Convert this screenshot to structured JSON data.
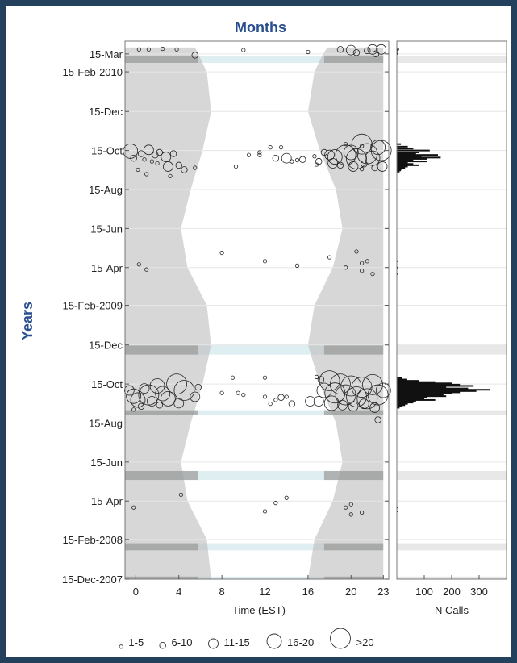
{
  "chart_data": {
    "type": "scatter",
    "top_title": "Months",
    "side_title": "Years",
    "xlabel": "Time (EST)",
    "hist_xlabel": "N Calls",
    "x_ticks": [
      "0",
      "4",
      "8",
      "12",
      "16",
      "20",
      "23"
    ],
    "x_tick_values": [
      0,
      4,
      8,
      12,
      16,
      20,
      23
    ],
    "hist_ticks": [
      "100",
      "200",
      "300"
    ],
    "hist_tick_values": [
      100,
      200,
      300
    ],
    "y_ticks": [
      "15-Mar",
      "15-Feb-2010",
      "15-Dec",
      "15-Oct",
      "15-Aug",
      "15-Jun",
      "15-Apr",
      "15-Feb-2009",
      "15-Dec",
      "15-Oct",
      "15-Aug",
      "15-Jun",
      "15-Apr",
      "15-Feb-2008",
      "15-Dec-2007"
    ],
    "y_tick_dates": [
      "2010-03-15",
      "2010-02-15",
      "2009-12-15",
      "2009-10-15",
      "2009-08-15",
      "2009-06-15",
      "2009-04-15",
      "2009-02-15",
      "2008-12-15",
      "2008-10-15",
      "2008-08-15",
      "2008-06-15",
      "2008-04-15",
      "2008-02-15",
      "2007-12-15"
    ],
    "legend": [
      {
        "label": "1-5",
        "size_class": 1
      },
      {
        "label": "6-10",
        "size_class": 2
      },
      {
        "label": "11-15",
        "size_class": 3
      },
      {
        "label": "16-20",
        "size_class": 4
      },
      {
        "label": ">20",
        "size_class": 5
      }
    ],
    "night_shading": [
      {
        "date": "2007-12-15",
        "sunrise": 7.0,
        "sunset": 16.0
      },
      {
        "date": "2008-02-15",
        "sunrise": 6.6,
        "sunset": 16.6
      },
      {
        "date": "2008-04-15",
        "sunrise": 4.8,
        "sunset": 18.3
      },
      {
        "date": "2008-06-15",
        "sunrise": 4.2,
        "sunset": 19.2
      },
      {
        "date": "2008-08-15",
        "sunrise": 5.1,
        "sunset": 18.6
      },
      {
        "date": "2008-10-15",
        "sunrise": 6.2,
        "sunset": 17.1
      },
      {
        "date": "2008-12-15",
        "sunrise": 7.0,
        "sunset": 16.0
      },
      {
        "date": "2009-02-15",
        "sunrise": 6.6,
        "sunset": 16.6
      },
      {
        "date": "2009-04-15",
        "sunrise": 4.8,
        "sunset": 18.3
      },
      {
        "date": "2009-06-15",
        "sunrise": 4.2,
        "sunset": 19.2
      },
      {
        "date": "2009-08-15",
        "sunrise": 5.1,
        "sunset": 18.6
      },
      {
        "date": "2009-10-15",
        "sunrise": 6.2,
        "sunset": 17.1
      },
      {
        "date": "2009-12-15",
        "sunrise": 7.0,
        "sunset": 16.0
      },
      {
        "date": "2010-02-15",
        "sunrise": 6.6,
        "sunset": 16.6
      },
      {
        "date": "2010-03-15",
        "sunrise": 5.8,
        "sunset": 17.4
      },
      {
        "date": "2010-03-25",
        "sunrise": 5.5,
        "sunset": 17.8
      }
    ],
    "no_effort_periods": [
      {
        "start": "2007-12-15",
        "end": "2007-12-19"
      },
      {
        "start": "2008-01-29",
        "end": "2008-02-09"
      },
      {
        "start": "2008-05-18",
        "end": "2008-06-01"
      },
      {
        "start": "2008-08-28",
        "end": "2008-09-04"
      },
      {
        "start": "2008-11-30",
        "end": "2008-12-15"
      },
      {
        "start": "2010-03-01",
        "end": "2010-03-11"
      }
    ],
    "detections": [
      {
        "date": "2010-03-22",
        "hour": 0.3,
        "size": 1
      },
      {
        "date": "2010-03-22",
        "hour": 1.2,
        "size": 1
      },
      {
        "date": "2010-03-23",
        "hour": 2.5,
        "size": 1
      },
      {
        "date": "2010-03-22",
        "hour": 3.8,
        "size": 1
      },
      {
        "date": "2010-03-13",
        "hour": 5.5,
        "size": 2
      },
      {
        "date": "2010-03-21",
        "hour": 10.0,
        "size": 1
      },
      {
        "date": "2010-03-18",
        "hour": 16.0,
        "size": 1
      },
      {
        "date": "2010-03-22",
        "hour": 19.0,
        "size": 2
      },
      {
        "date": "2010-03-21",
        "hour": 20.0,
        "size": 3
      },
      {
        "date": "2010-03-17",
        "hour": 20.5,
        "size": 2
      },
      {
        "date": "2010-03-20",
        "hour": 21.5,
        "size": 2
      },
      {
        "date": "2010-03-22",
        "hour": 22.0,
        "size": 3
      },
      {
        "date": "2010-03-22",
        "hour": 22.8,
        "size": 3
      },
      {
        "date": "2010-03-15",
        "hour": 22.3,
        "size": 2
      },
      {
        "date": "2009-10-20",
        "hour": 12.5,
        "size": 1
      },
      {
        "date": "2009-10-20",
        "hour": 13.5,
        "size": 1
      },
      {
        "date": "2009-10-25",
        "hour": 19.5,
        "size": 1
      },
      {
        "date": "2009-10-22",
        "hour": 21.0,
        "size": 1
      },
      {
        "date": "2009-10-14",
        "hour": -0.5,
        "size": 4
      },
      {
        "date": "2009-10-03",
        "hour": -0.2,
        "size": 2
      },
      {
        "date": "2009-10-10",
        "hour": 0.5,
        "size": 2
      },
      {
        "date": "2009-10-01",
        "hour": 0.8,
        "size": 1
      },
      {
        "date": "2009-10-16",
        "hour": 1.2,
        "size": 3
      },
      {
        "date": "2009-10-08",
        "hour": 1.8,
        "size": 2
      },
      {
        "date": "2009-09-28",
        "hour": 1.5,
        "size": 1
      },
      {
        "date": "2009-10-12",
        "hour": 2.2,
        "size": 2
      },
      {
        "date": "2009-10-05",
        "hour": 2.8,
        "size": 3
      },
      {
        "date": "2009-09-25",
        "hour": 2.0,
        "size": 1
      },
      {
        "date": "2009-10-10",
        "hour": 3.5,
        "size": 2
      },
      {
        "date": "2009-09-20",
        "hour": 3.0,
        "size": 3
      },
      {
        "date": "2009-09-22",
        "hour": 4.0,
        "size": 2
      },
      {
        "date": "2009-09-15",
        "hour": 4.5,
        "size": 2
      },
      {
        "date": "2009-09-18",
        "hour": 5.5,
        "size": 1
      },
      {
        "date": "2009-09-05",
        "hour": 3.2,
        "size": 1
      },
      {
        "date": "2009-09-08",
        "hour": 1.0,
        "size": 1
      },
      {
        "date": "2009-09-15",
        "hour": 0.2,
        "size": 1
      },
      {
        "date": "2009-10-08",
        "hour": 10.5,
        "size": 1
      },
      {
        "date": "2009-10-12",
        "hour": 11.5,
        "size": 1
      },
      {
        "date": "2009-10-08",
        "hour": 11.5,
        "size": 1
      },
      {
        "date": "2009-09-20",
        "hour": 9.3,
        "size": 1
      },
      {
        "date": "2009-10-03",
        "hour": 13.0,
        "size": 2
      },
      {
        "date": "2009-10-03",
        "hour": 14.0,
        "size": 3
      },
      {
        "date": "2009-09-30",
        "hour": 15.0,
        "size": 1
      },
      {
        "date": "2009-10-01",
        "hour": 15.5,
        "size": 2
      },
      {
        "date": "2009-09-28",
        "hour": 14.5,
        "size": 1
      },
      {
        "date": "2009-10-25",
        "hour": 21.0,
        "size": 5
      },
      {
        "date": "2009-10-20",
        "hour": 22.5,
        "size": 4
      },
      {
        "date": "2009-10-12",
        "hour": 17.5,
        "size": 2
      },
      {
        "date": "2009-10-08",
        "hour": 18.0,
        "size": 3
      },
      {
        "date": "2009-10-05",
        "hour": 18.5,
        "size": 4
      },
      {
        "date": "2009-10-08",
        "hour": 19.5,
        "size": 5
      },
      {
        "date": "2009-10-12",
        "hour": 20.0,
        "size": 4
      },
      {
        "date": "2009-10-02",
        "hour": 20.5,
        "size": 5
      },
      {
        "date": "2009-10-10",
        "hour": 21.5,
        "size": 5
      },
      {
        "date": "2009-10-03",
        "hour": 22.0,
        "size": 4
      },
      {
        "date": "2009-10-15",
        "hour": 22.8,
        "size": 5
      },
      {
        "date": "2009-09-28",
        "hour": 17.0,
        "size": 2
      },
      {
        "date": "2009-09-25",
        "hour": 18.3,
        "size": 3
      },
      {
        "date": "2009-09-22",
        "hour": 19.0,
        "size": 2
      },
      {
        "date": "2009-09-20",
        "hour": 20.2,
        "size": 3
      },
      {
        "date": "2009-09-24",
        "hour": 21.2,
        "size": 2
      },
      {
        "date": "2009-09-18",
        "hour": 22.2,
        "size": 2
      },
      {
        "date": "2009-09-20",
        "hour": 22.9,
        "size": 3
      },
      {
        "date": "2009-09-23",
        "hour": 16.8,
        "size": 1
      },
      {
        "date": "2009-10-06",
        "hour": 16.6,
        "size": 1
      },
      {
        "date": "2009-09-16",
        "hour": 21.0,
        "size": 1
      },
      {
        "date": "2009-05-01",
        "hour": 18.0,
        "size": 1
      },
      {
        "date": "2009-05-10",
        "hour": 20.5,
        "size": 1
      },
      {
        "date": "2009-04-25",
        "hour": 21.5,
        "size": 1
      },
      {
        "date": "2009-04-15",
        "hour": 19.5,
        "size": 1
      },
      {
        "date": "2009-04-10",
        "hour": 21.0,
        "size": 1
      },
      {
        "date": "2009-04-05",
        "hour": 22.0,
        "size": 1
      },
      {
        "date": "2009-04-22",
        "hour": 21.0,
        "size": 1
      },
      {
        "date": "2009-05-08",
        "hour": 8.0,
        "size": 1
      },
      {
        "date": "2009-04-20",
        "hour": 0.3,
        "size": 1
      },
      {
        "date": "2009-04-12",
        "hour": 1.0,
        "size": 1
      },
      {
        "date": "2009-04-25",
        "hour": 12.0,
        "size": 1
      },
      {
        "date": "2009-04-18",
        "hour": 15.0,
        "size": 1
      },
      {
        "date": "2008-10-25",
        "hour": 9.0,
        "size": 1
      },
      {
        "date": "2008-10-25",
        "hour": 12.0,
        "size": 1
      },
      {
        "date": "2008-10-01",
        "hour": 8.0,
        "size": 1
      },
      {
        "date": "2008-10-01",
        "hour": 9.5,
        "size": 1
      },
      {
        "date": "2008-09-28",
        "hour": 10.0,
        "size": 1
      },
      {
        "date": "2008-09-25",
        "hour": 12.0,
        "size": 1
      },
      {
        "date": "2008-09-20",
        "hour": 13.0,
        "size": 1
      },
      {
        "date": "2008-09-24",
        "hour": 13.5,
        "size": 2
      },
      {
        "date": "2008-09-14",
        "hour": 12.5,
        "size": 1
      },
      {
        "date": "2008-09-25",
        "hour": 14.0,
        "size": 1
      },
      {
        "date": "2008-09-14",
        "hour": 14.5,
        "size": 2
      },
      {
        "date": "2008-10-05",
        "hour": -0.6,
        "size": 3
      },
      {
        "date": "2008-09-26",
        "hour": -0.2,
        "size": 4
      },
      {
        "date": "2008-09-20",
        "hour": 0.2,
        "size": 4
      },
      {
        "date": "2008-10-08",
        "hour": 0.8,
        "size": 3
      },
      {
        "date": "2008-09-28",
        "hour": 1.2,
        "size": 5
      },
      {
        "date": "2008-09-18",
        "hour": 1.5,
        "size": 3
      },
      {
        "date": "2008-10-12",
        "hour": 2.0,
        "size": 4
      },
      {
        "date": "2008-09-30",
        "hour": 2.5,
        "size": 4
      },
      {
        "date": "2008-09-22",
        "hour": 3.0,
        "size": 4
      },
      {
        "date": "2008-10-15",
        "hour": 3.8,
        "size": 5
      },
      {
        "date": "2008-10-05",
        "hour": 4.5,
        "size": 5
      },
      {
        "date": "2008-09-15",
        "hour": 4.0,
        "size": 3
      },
      {
        "date": "2008-09-25",
        "hour": 5.5,
        "size": 3
      },
      {
        "date": "2008-10-10",
        "hour": 5.8,
        "size": 2
      },
      {
        "date": "2008-09-10",
        "hour": 0.5,
        "size": 2
      },
      {
        "date": "2008-09-05",
        "hour": -0.2,
        "size": 1
      },
      {
        "date": "2008-09-12",
        "hour": 2.2,
        "size": 2
      },
      {
        "date": "2008-10-20",
        "hour": 18.0,
        "size": 5
      },
      {
        "date": "2008-10-15",
        "hour": 19.0,
        "size": 5
      },
      {
        "date": "2008-10-12",
        "hour": 20.0,
        "size": 5
      },
      {
        "date": "2008-10-10",
        "hour": 21.0,
        "size": 5
      },
      {
        "date": "2008-10-14",
        "hour": 22.0,
        "size": 5
      },
      {
        "date": "2008-10-05",
        "hour": 17.5,
        "size": 4
      },
      {
        "date": "2008-10-01",
        "hour": 18.5,
        "size": 5
      },
      {
        "date": "2008-09-28",
        "hour": 19.5,
        "size": 5
      },
      {
        "date": "2008-09-25",
        "hour": 20.5,
        "size": 5
      },
      {
        "date": "2008-09-22",
        "hour": 21.5,
        "size": 5
      },
      {
        "date": "2008-09-28",
        "hour": 22.5,
        "size": 5
      },
      {
        "date": "2008-10-05",
        "hour": 23.0,
        "size": 4
      },
      {
        "date": "2008-09-18",
        "hour": 17.0,
        "size": 3
      },
      {
        "date": "2008-09-15",
        "hour": 18.2,
        "size": 4
      },
      {
        "date": "2008-09-12",
        "hour": 19.2,
        "size": 3
      },
      {
        "date": "2008-09-10",
        "hour": 20.2,
        "size": 3
      },
      {
        "date": "2008-09-14",
        "hour": 21.2,
        "size": 3
      },
      {
        "date": "2008-09-08",
        "hour": 22.2,
        "size": 3
      },
      {
        "date": "2008-09-18",
        "hour": 16.2,
        "size": 3
      },
      {
        "date": "2008-08-20",
        "hour": 22.5,
        "size": 2
      },
      {
        "date": "2008-10-26",
        "hour": 16.8,
        "size": 1
      },
      {
        "date": "2008-10-22",
        "hour": 17.2,
        "size": 2
      },
      {
        "date": "2008-04-05",
        "hour": 19.5,
        "size": 1
      },
      {
        "date": "2008-03-25",
        "hour": 20.0,
        "size": 1
      },
      {
        "date": "2008-03-28",
        "hour": 21.0,
        "size": 1
      },
      {
        "date": "2008-04-10",
        "hour": 20.0,
        "size": 1
      },
      {
        "date": "2008-04-20",
        "hour": 14.0,
        "size": 1
      },
      {
        "date": "2008-04-12",
        "hour": 13.0,
        "size": 1
      },
      {
        "date": "2008-03-30",
        "hour": 12.0,
        "size": 1
      },
      {
        "date": "2008-04-05",
        "hour": -0.2,
        "size": 1
      },
      {
        "date": "2008-04-25",
        "hour": 4.2,
        "size": 1
      }
    ],
    "hist_bars": [
      {
        "date": "2010-03-22",
        "count": 8
      },
      {
        "date": "2010-03-21",
        "count": 5
      },
      {
        "date": "2010-03-18",
        "count": 4
      },
      {
        "date": "2010-03-15",
        "count": 6
      },
      {
        "date": "2009-10-25",
        "count": 15
      },
      {
        "date": "2009-10-21",
        "count": 40
      },
      {
        "date": "2009-10-18",
        "count": 60
      },
      {
        "date": "2009-10-15",
        "count": 120
      },
      {
        "date": "2009-10-12",
        "count": 80
      },
      {
        "date": "2009-10-10",
        "count": 70
      },
      {
        "date": "2009-10-08",
        "count": 150
      },
      {
        "date": "2009-10-06",
        "count": 90
      },
      {
        "date": "2009-10-04",
        "count": 160
      },
      {
        "date": "2009-10-02",
        "count": 110
      },
      {
        "date": "2009-09-30",
        "count": 60
      },
      {
        "date": "2009-09-28",
        "count": 110
      },
      {
        "date": "2009-09-26",
        "count": 40
      },
      {
        "date": "2009-09-24",
        "count": 60
      },
      {
        "date": "2009-09-22",
        "count": 80
      },
      {
        "date": "2009-09-20",
        "count": 40
      },
      {
        "date": "2009-09-18",
        "count": 30
      },
      {
        "date": "2009-09-16",
        "count": 20
      },
      {
        "date": "2009-09-14",
        "count": 15
      },
      {
        "date": "2009-09-12",
        "count": 10
      },
      {
        "date": "2009-04-25",
        "count": 6
      },
      {
        "date": "2009-04-15",
        "count": 5
      },
      {
        "date": "2009-04-05",
        "count": 4
      },
      {
        "date": "2008-10-24",
        "count": 20
      },
      {
        "date": "2008-10-22",
        "count": 35
      },
      {
        "date": "2008-10-20",
        "count": 80
      },
      {
        "date": "2008-10-18",
        "count": 140
      },
      {
        "date": "2008-10-16",
        "count": 200
      },
      {
        "date": "2008-10-14",
        "count": 230
      },
      {
        "date": "2008-10-12",
        "count": 280
      },
      {
        "date": "2008-10-10",
        "count": 180
      },
      {
        "date": "2008-10-08",
        "count": 260
      },
      {
        "date": "2008-10-06",
        "count": 340
      },
      {
        "date": "2008-10-04",
        "count": 290
      },
      {
        "date": "2008-10-02",
        "count": 230
      },
      {
        "date": "2008-09-30",
        "count": 200
      },
      {
        "date": "2008-09-28",
        "count": 170
      },
      {
        "date": "2008-09-26",
        "count": 180
      },
      {
        "date": "2008-09-24",
        "count": 110
      },
      {
        "date": "2008-09-22",
        "count": 100
      },
      {
        "date": "2008-09-20",
        "count": 140
      },
      {
        "date": "2008-09-18",
        "count": 70
      },
      {
        "date": "2008-09-16",
        "count": 60
      },
      {
        "date": "2008-09-14",
        "count": 40
      },
      {
        "date": "2008-09-12",
        "count": 30
      },
      {
        "date": "2008-09-10",
        "count": 20
      },
      {
        "date": "2008-09-08",
        "count": 10
      },
      {
        "date": "2008-04-05",
        "count": 4
      },
      {
        "date": "2008-03-30",
        "count": 3
      }
    ],
    "xlim": [
      -1,
      23.5
    ],
    "ylim": [
      "2007-12-15",
      "2010-04-04"
    ],
    "hist_xlim": [
      0,
      400
    ]
  }
}
